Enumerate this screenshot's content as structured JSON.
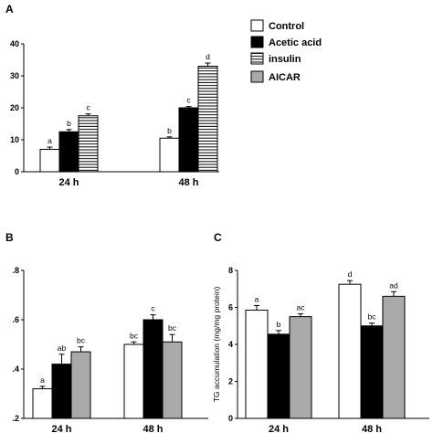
{
  "legend": [
    {
      "label": "Control",
      "fill": "white"
    },
    {
      "label": "Acetic acid",
      "fill": "black"
    },
    {
      "label": "insulin",
      "fill": "hatch"
    },
    {
      "label": "AICAR",
      "fill": "gray"
    }
  ],
  "colors": {
    "black": "#000000",
    "gray": "#aaaaaa",
    "white": "#ffffff"
  },
  "chart_data": [
    {
      "panel": "A",
      "type": "bar",
      "categories": [
        "24 h",
        "48 h"
      ],
      "ylim": [
        0,
        40
      ],
      "yticks": [
        "0",
        "10",
        "20",
        "30",
        "40"
      ],
      "ylabel": "",
      "series": [
        {
          "name": "Control",
          "fill": "white",
          "values": [
            7.0,
            10.5
          ],
          "errors": [
            0.7,
            0.4
          ],
          "sig": [
            "a",
            "b"
          ]
        },
        {
          "name": "Acetic acid",
          "fill": "black",
          "values": [
            12.5,
            20.0
          ],
          "errors": [
            0.7,
            0.4
          ],
          "sig": [
            "b",
            "c"
          ]
        },
        {
          "name": "insulin",
          "fill": "hatch",
          "values": [
            17.5,
            33.0
          ],
          "errors": [
            0.6,
            1.0
          ],
          "sig": [
            "c",
            "d"
          ]
        }
      ]
    },
    {
      "panel": "B",
      "type": "bar",
      "categories": [
        "24 h",
        "48 h"
      ],
      "ylim": [
        0.2,
        0.8
      ],
      "yticks": [
        ".2",
        ".4",
        ".6",
        ".8"
      ],
      "ylabel": "",
      "series": [
        {
          "name": "Control",
          "fill": "white",
          "values": [
            0.32,
            0.5
          ],
          "errors": [
            0.01,
            0.01
          ],
          "sig": [
            "a",
            "bc"
          ]
        },
        {
          "name": "Acetic acid",
          "fill": "black",
          "values": [
            0.42,
            0.6
          ],
          "errors": [
            0.04,
            0.02
          ],
          "sig": [
            "ab",
            "c"
          ]
        },
        {
          "name": "AICAR",
          "fill": "gray",
          "values": [
            0.47,
            0.51
          ],
          "errors": [
            0.02,
            0.03
          ],
          "sig": [
            "bc",
            "bc"
          ]
        }
      ]
    },
    {
      "panel": "C",
      "type": "bar",
      "categories": [
        "24 h",
        "48 h"
      ],
      "ylim": [
        0,
        8
      ],
      "yticks": [
        "0",
        "2",
        "4",
        "6",
        "8"
      ],
      "ylabel": "TG accumulation  (mg/mg protein)",
      "series": [
        {
          "name": "Control",
          "fill": "white",
          "values": [
            5.85,
            7.25
          ],
          "errors": [
            0.25,
            0.2
          ],
          "sig": [
            "a",
            "d"
          ]
        },
        {
          "name": "Acetic acid",
          "fill": "black",
          "values": [
            4.55,
            5.0
          ],
          "errors": [
            0.2,
            0.15
          ],
          "sig": [
            "b",
            "bc"
          ]
        },
        {
          "name": "AICAR",
          "fill": "gray",
          "values": [
            5.5,
            6.6
          ],
          "errors": [
            0.15,
            0.25
          ],
          "sig": [
            "ac",
            "ad"
          ]
        }
      ]
    }
  ]
}
